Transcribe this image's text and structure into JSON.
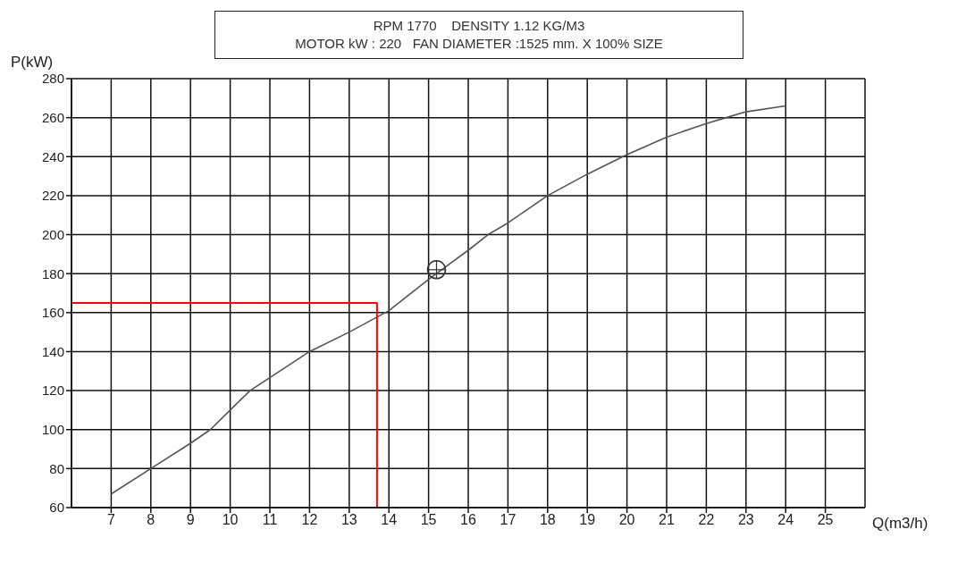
{
  "chart_data": {
    "type": "line",
    "title": "RPM 1770    DENSITY 1.12 KG/M3",
    "subtitle": "MOTOR kW : 220   FAN DIAMETER :1525 mm. X 100% SIZE",
    "xlabel": "Q(m3/h)",
    "ylabel": "P(kW)",
    "xlim": [
      6,
      26
    ],
    "xticks": [
      7,
      8,
      9,
      10,
      11,
      12,
      13,
      14,
      15,
      16,
      17,
      18,
      19,
      20,
      21,
      22,
      23,
      24,
      25
    ],
    "ylim": [
      60,
      280
    ],
    "yticks": [
      60,
      80,
      100,
      120,
      140,
      160,
      180,
      200,
      220,
      240,
      260,
      280
    ],
    "grid": true,
    "series": [
      {
        "color": "#555555",
        "marker": "none",
        "x": [
          7,
          8,
          9,
          9.5,
          10.5,
          12,
          13,
          14,
          15,
          16,
          16.5,
          17,
          18,
          19,
          20,
          21,
          22,
          22.5,
          23,
          24
        ],
        "values": [
          67,
          80,
          93,
          100,
          120,
          140,
          150,
          161,
          177,
          192,
          200,
          206,
          220,
          231,
          241,
          250,
          257,
          260,
          263,
          266
        ]
      },
      {
        "type": "line",
        "color": "#ff0000",
        "marker": "none",
        "x": [
          6,
          13.7,
          13.7
        ],
        "values": [
          165,
          165,
          60
        ]
      },
      {
        "type": "scatter",
        "color": "#333333",
        "marker": "circle",
        "x": [
          15.2
        ],
        "values": [
          182
        ]
      }
    ]
  }
}
